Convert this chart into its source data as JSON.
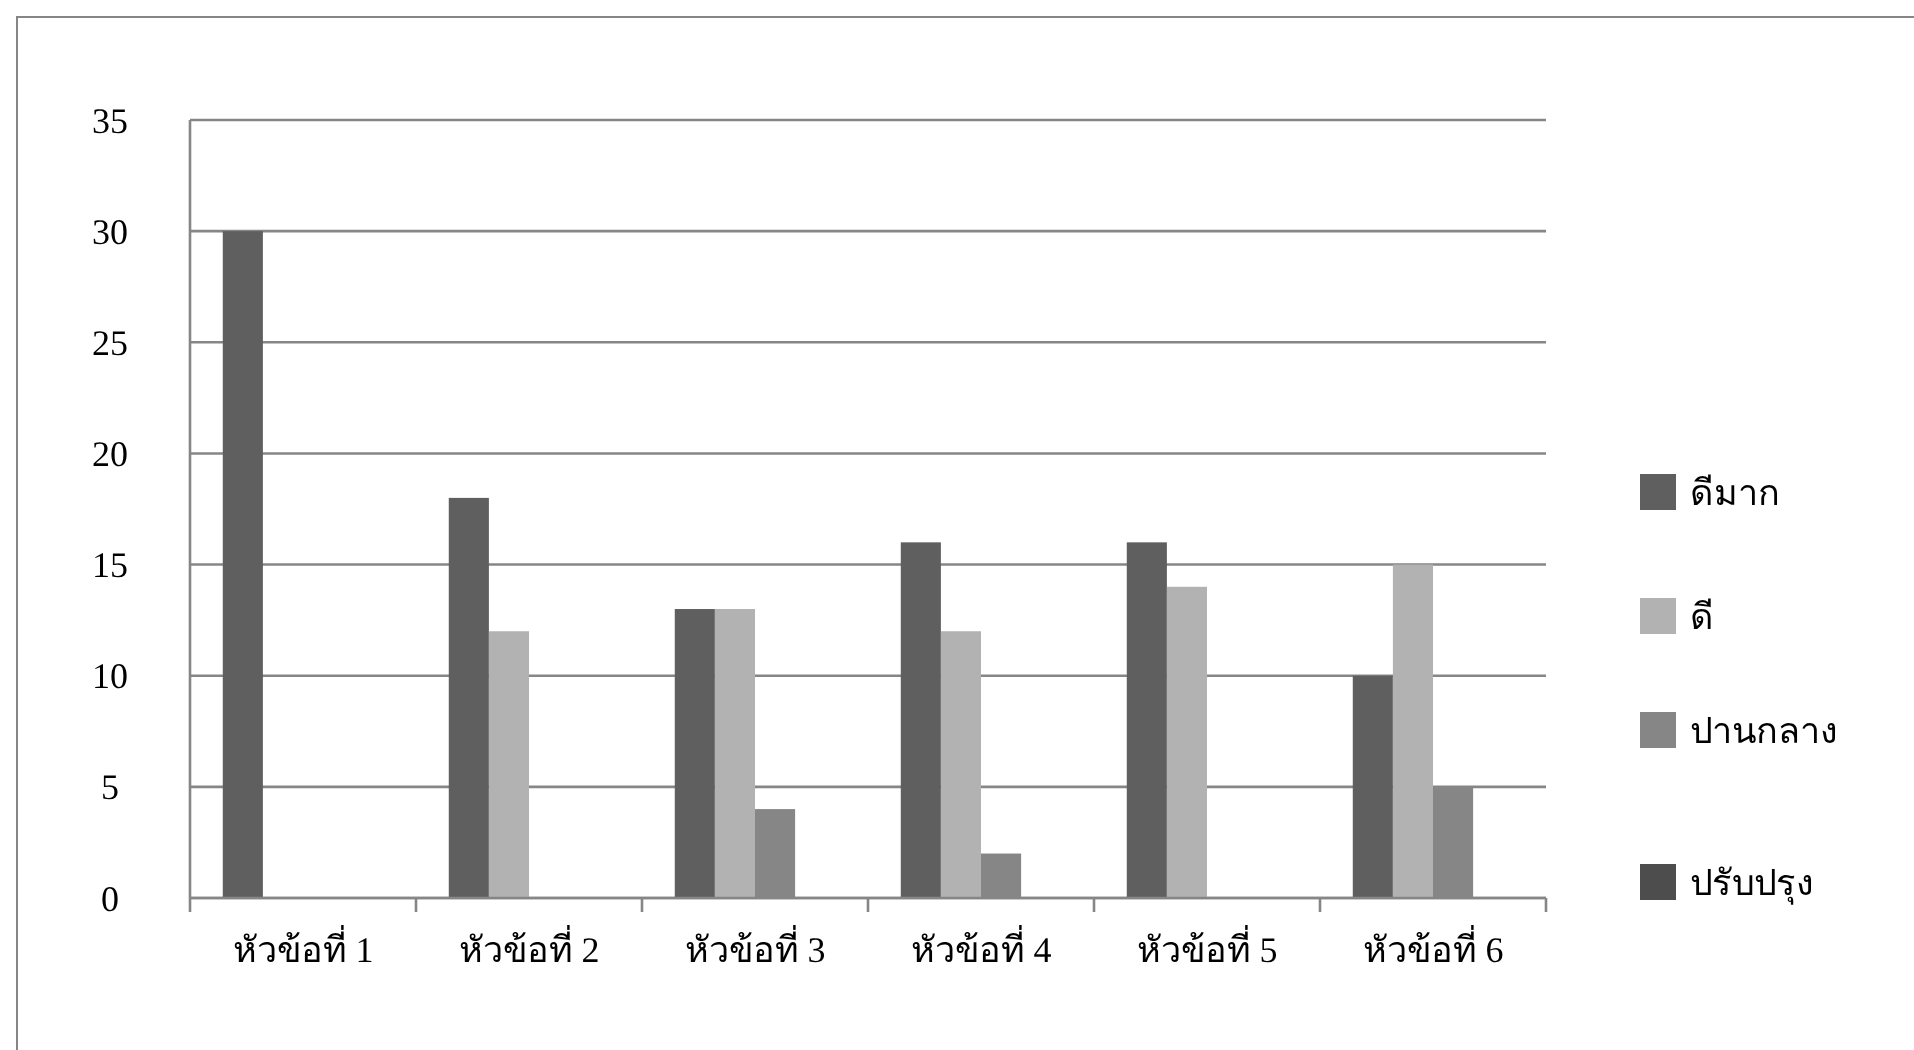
{
  "chart_data": {
    "type": "bar",
    "categories": [
      "หัวข้อที่ 1",
      "หัวข้อที่ 2",
      "หัวข้อที่ 3",
      "หัวข้อที่ 4",
      "หัวข้อที่ 5",
      "หัวข้อที่ 6"
    ],
    "series": [
      {
        "name": "ดีมาก",
        "color": "#5f5f5f",
        "values": [
          30,
          18,
          13,
          16,
          16,
          10
        ]
      },
      {
        "name": "ดี",
        "color": "#b2b2b2",
        "values": [
          0,
          12,
          13,
          12,
          14,
          15
        ]
      },
      {
        "name": "ปานกลาง",
        "color": "#868686",
        "values": [
          0,
          0,
          4,
          2,
          0,
          5
        ]
      },
      {
        "name": "ปรับปรุง",
        "color": "#4d4d4d",
        "values": [
          0,
          0,
          0,
          0,
          0,
          0
        ]
      }
    ],
    "ylim": [
      0,
      35
    ],
    "yticks": [
      0,
      5,
      10,
      15,
      20,
      25,
      30,
      35
    ],
    "grid": "y",
    "legend": "right"
  }
}
